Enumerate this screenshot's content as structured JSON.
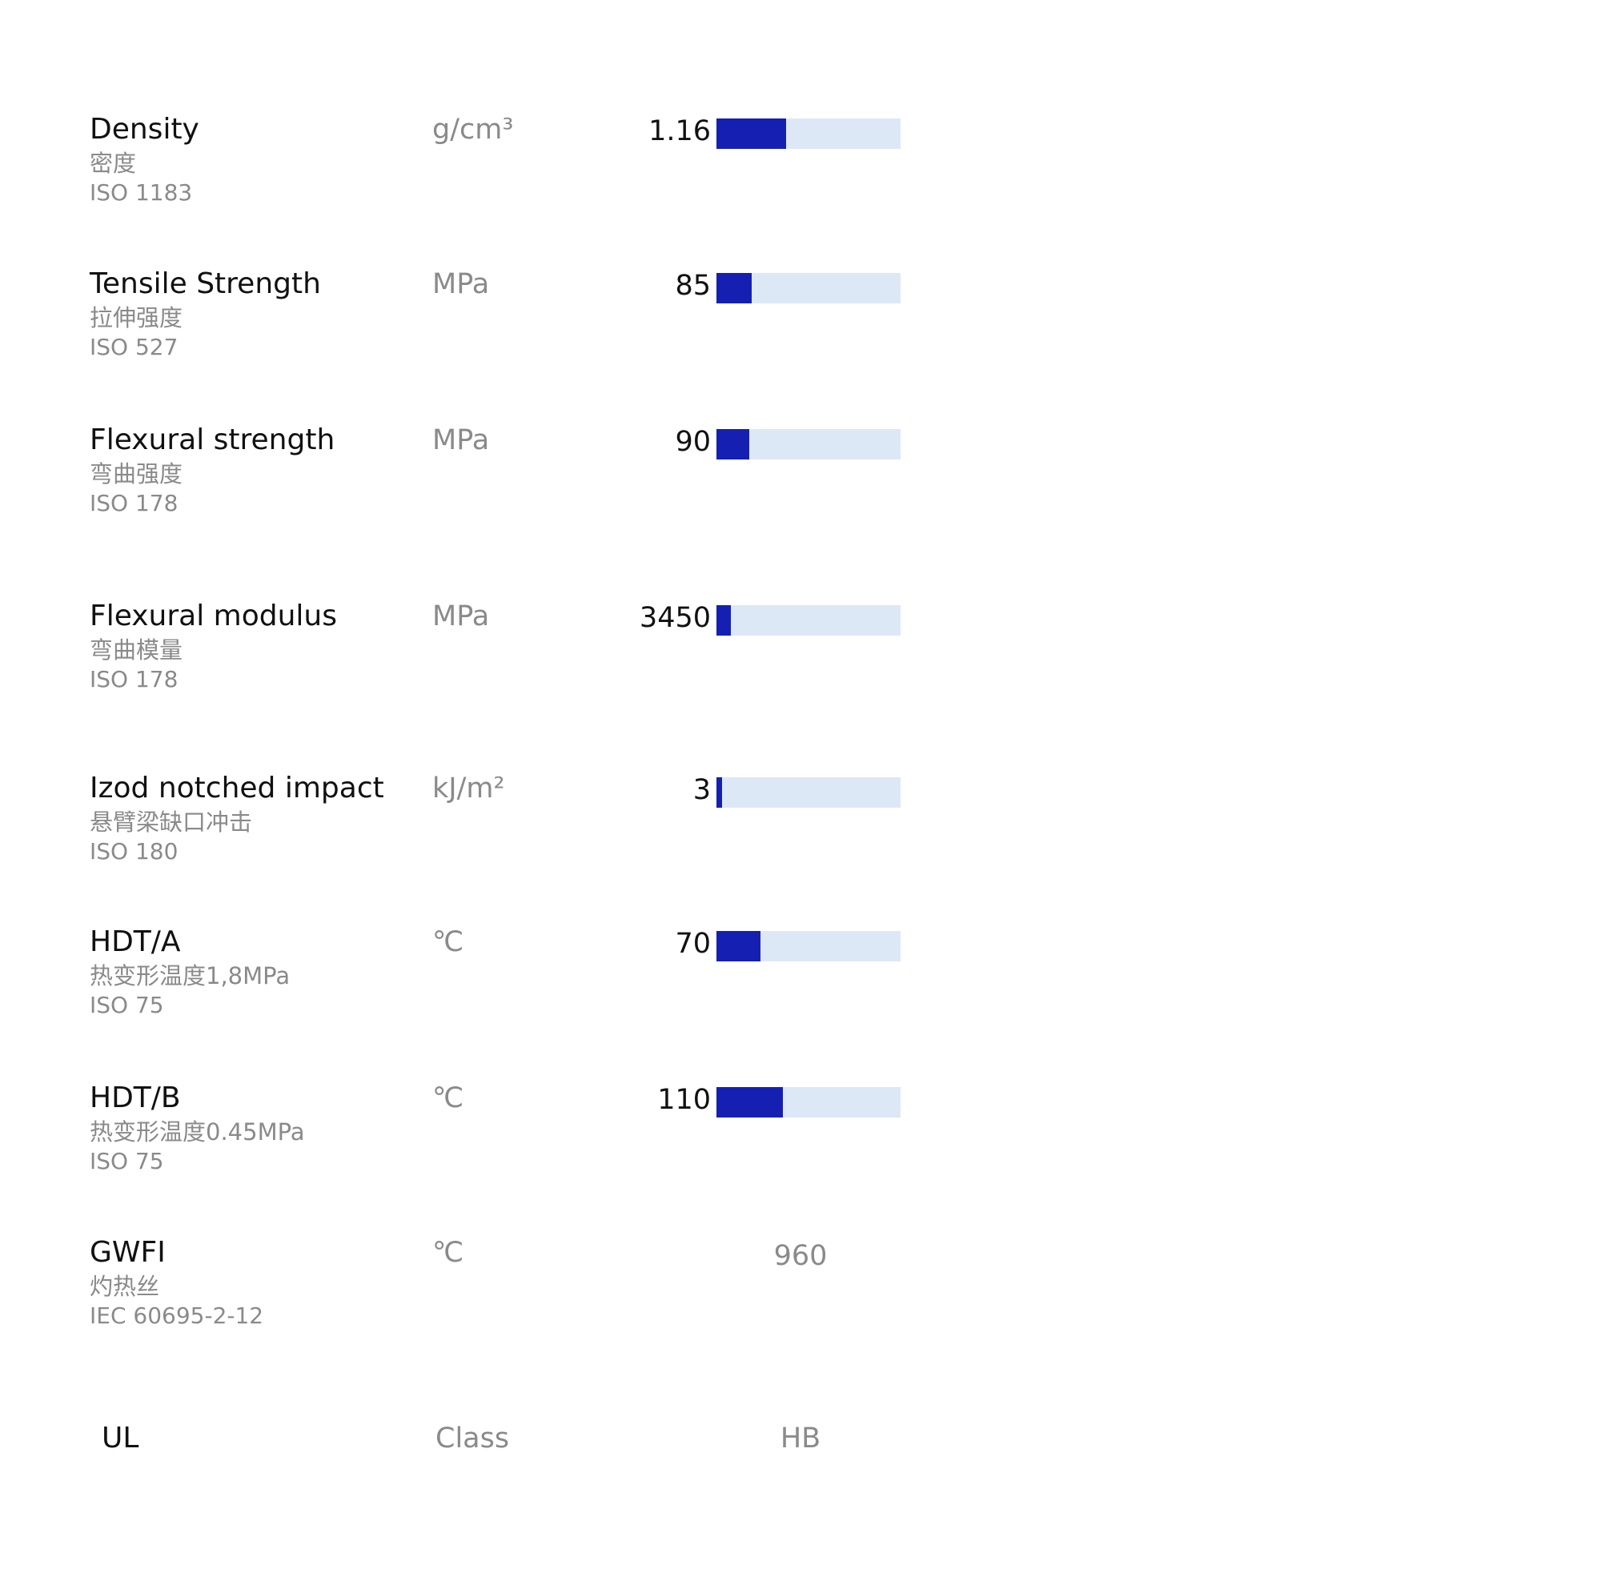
{
  "properties": [
    {
      "name": "Density",
      "cn": "密度",
      "std": "ISO 1183",
      "unit": "g/cm³",
      "value": "1.16",
      "fill_fraction": 0.38
    },
    {
      "name": "Tensile Strength",
      "cn": "拉伸强度",
      "std": "ISO 527",
      "unit": "MPa",
      "value": "85",
      "fill_fraction": 0.19
    },
    {
      "name": "Flexural strength",
      "cn": "弯曲强度",
      "std": "ISO 178",
      "unit": "MPa",
      "value": "90",
      "fill_fraction": 0.18
    },
    {
      "name": "Flexural modulus",
      "cn": "弯曲模量",
      "std": "ISO 178",
      "unit": "MPa",
      "value": "3450",
      "fill_fraction": 0.08
    },
    {
      "name": "Izod notched impact",
      "cn": "悬臂梁缺口冲击",
      "std": "ISO 180",
      "unit": "kJ/m²",
      "value": "3",
      "fill_fraction": 0.03
    },
    {
      "name": "HDT/A",
      "cn": "热变形温度1,8MPa",
      "std": "ISO 75",
      "unit": "℃",
      "value": "70",
      "fill_fraction": 0.24
    },
    {
      "name": "HDT/B",
      "cn": "热变形温度0.45MPa",
      "std": "ISO 75",
      "unit": "℃",
      "value": "110",
      "fill_fraction": 0.36
    },
    {
      "name": "GWFI",
      "cn": "灼热丝",
      "std": "IEC 60695-2-12",
      "unit": "℃",
      "value": "960"
    },
    {
      "name": "UL",
      "unit": "Class",
      "value": "HB"
    }
  ],
  "colors": {
    "bar_fill": "#1520b2",
    "bar_track": "#dde8f6",
    "text_primary": "#111111",
    "text_secondary": "#8a8a8a"
  }
}
